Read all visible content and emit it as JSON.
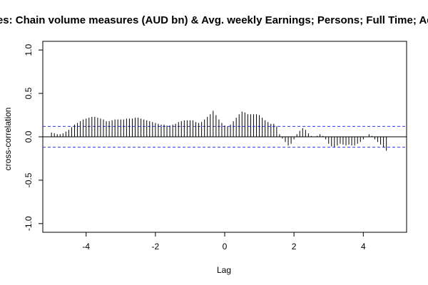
{
  "chart_data": {
    "type": "bar",
    "title": "ices: Chain volume measures (AUD bn) & Avg. weekly Earnings; Persons; Full Time; Adu",
    "xlabel": "Lag",
    "ylabel": "cross-correlation",
    "xlim": [
      -5.25,
      5.25
    ],
    "ylim": [
      -1.1,
      1.1
    ],
    "x_ticks": [
      -4,
      -2,
      0,
      2,
      4
    ],
    "x_tick_labels": [
      "-4",
      "-2",
      "0",
      "2",
      "4"
    ],
    "y_ticks": [
      -1.0,
      -0.5,
      0.0,
      0.5,
      1.0
    ],
    "y_tick_labels": [
      "-1.0",
      "-0.5",
      "0.0",
      "0.5",
      "1.0"
    ],
    "confidence_bounds": [
      0.12,
      -0.12
    ],
    "lag_step": 0.0833333,
    "lag_start": -5.0,
    "values": [
      0.05,
      0.04,
      0.03,
      0.03,
      0.04,
      0.06,
      0.08,
      0.11,
      0.14,
      0.16,
      0.18,
      0.2,
      0.21,
      0.22,
      0.23,
      0.23,
      0.22,
      0.21,
      0.2,
      0.18,
      0.18,
      0.19,
      0.2,
      0.2,
      0.2,
      0.2,
      0.21,
      0.21,
      0.21,
      0.22,
      0.22,
      0.21,
      0.2,
      0.19,
      0.18,
      0.17,
      0.16,
      0.15,
      0.14,
      0.14,
      0.13,
      0.13,
      0.14,
      0.15,
      0.17,
      0.18,
      0.19,
      0.19,
      0.19,
      0.19,
      0.17,
      0.16,
      0.17,
      0.2,
      0.23,
      0.26,
      0.3,
      0.25,
      0.2,
      0.16,
      0.13,
      0.12,
      0.14,
      0.18,
      0.22,
      0.26,
      0.29,
      0.28,
      0.26,
      0.26,
      0.26,
      0.26,
      0.25,
      0.22,
      0.19,
      0.17,
      0.15,
      0.15,
      0.12,
      0.03,
      -0.02,
      -0.06,
      -0.1,
      -0.08,
      -0.03,
      0.03,
      0.07,
      0.1,
      0.08,
      0.04,
      0.01,
      0.0,
      0.01,
      0.03,
      0.01,
      -0.03,
      -0.08,
      -0.11,
      -0.12,
      -0.1,
      -0.08,
      -0.09,
      -0.1,
      -0.09,
      -0.1,
      -0.1,
      -0.08,
      -0.06,
      -0.03,
      0.0,
      0.03,
      0.01,
      -0.03,
      -0.06,
      -0.09,
      -0.12,
      -0.16
    ]
  }
}
